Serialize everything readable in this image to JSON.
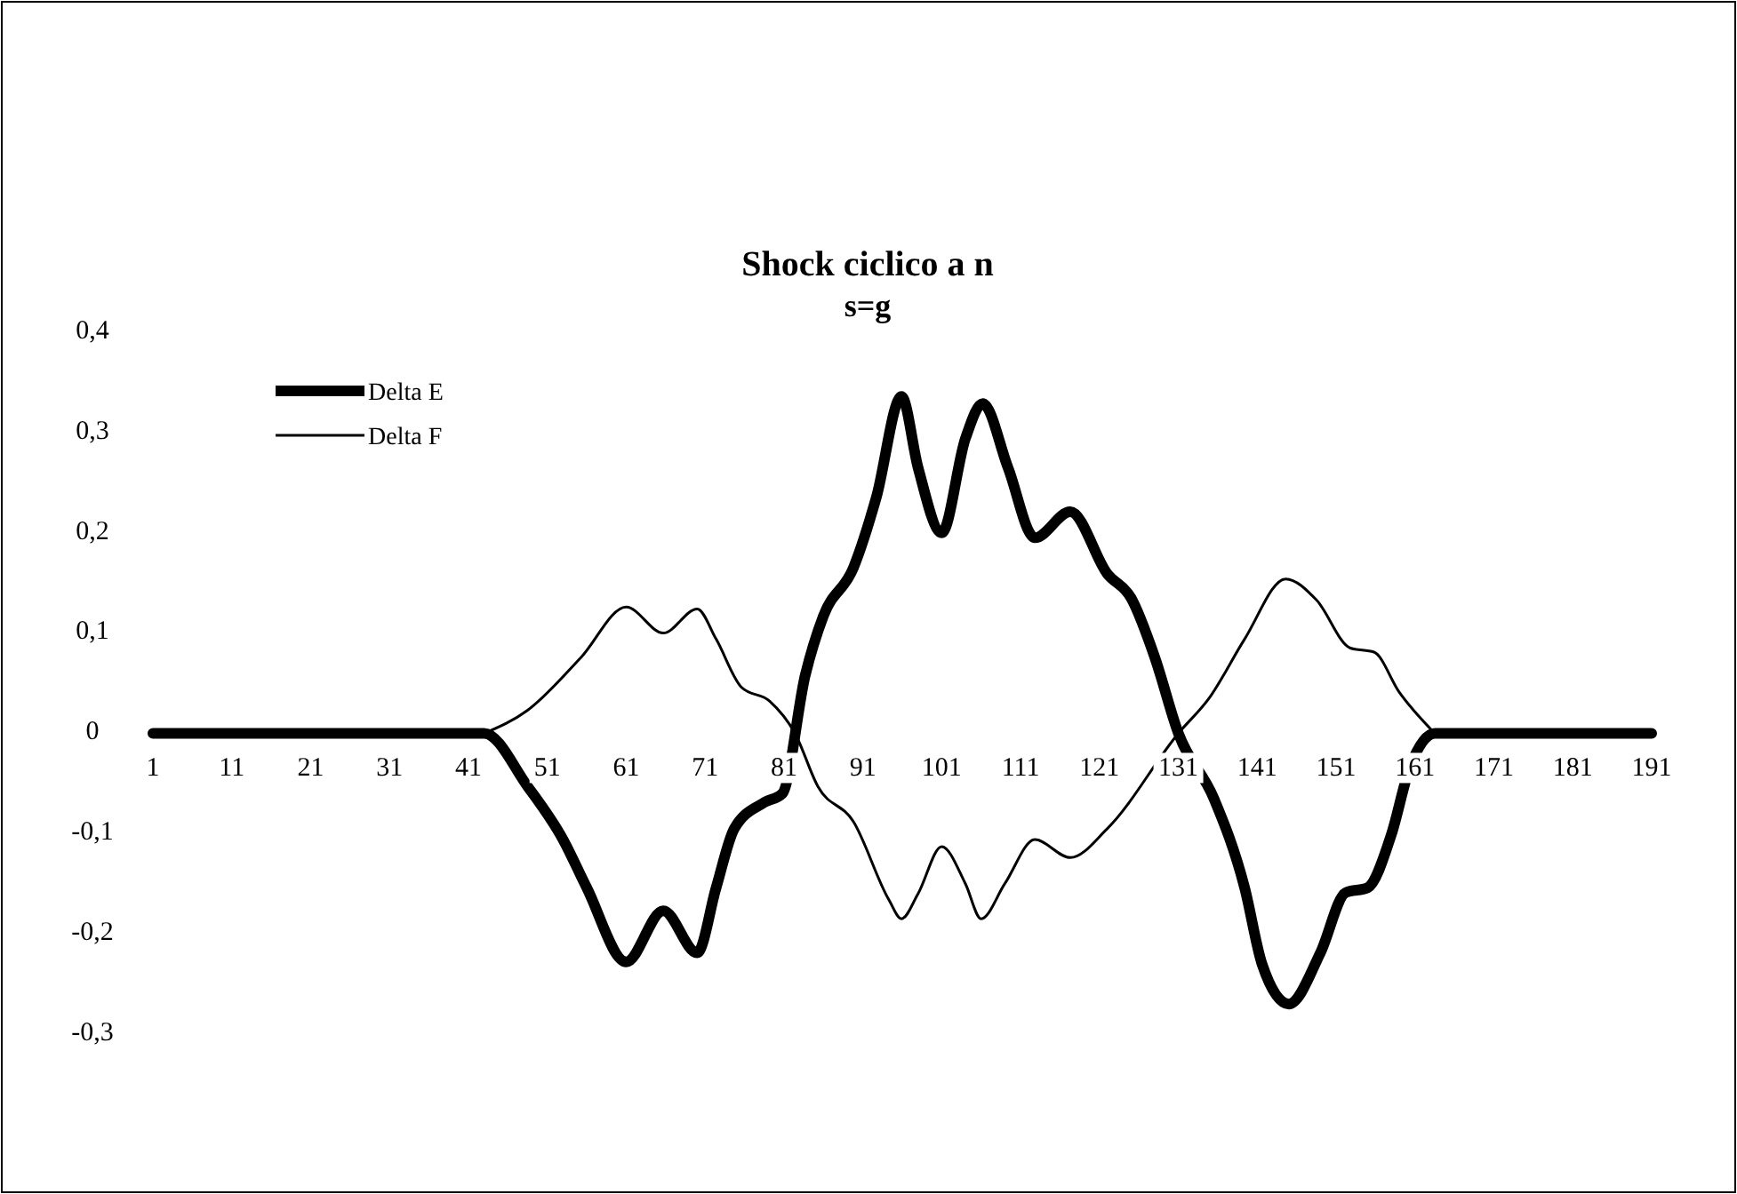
{
  "chart_data": {
    "type": "line",
    "title": "Shock ciclico a n",
    "subtitle": "s=g",
    "xlim": [
      1,
      191
    ],
    "xticks": [
      1,
      11,
      21,
      31,
      41,
      51,
      61,
      71,
      81,
      91,
      101,
      111,
      121,
      131,
      141,
      151,
      161,
      171,
      181,
      191
    ],
    "ylim": [
      -0.3,
      0.4
    ],
    "yticks": [
      {
        "value": -0.3,
        "label": "-0,3"
      },
      {
        "value": -0.2,
        "label": "-0,2"
      },
      {
        "value": -0.1,
        "label": "-0,1"
      },
      0,
      {
        "value": 0.1,
        "label": "0,1"
      },
      {
        "value": 0.2,
        "label": "0,2"
      },
      {
        "value": 0.3,
        "label": "0,3"
      },
      {
        "value": 0.4,
        "label": "0,4"
      }
    ],
    "grid": false,
    "legend": "top left",
    "marker": "none",
    "line_style": "solid",
    "series": [
      {
        "name": "Delta E",
        "color": "#000000",
        "x": [
          1,
          11,
          21,
          31,
          41,
          43,
          48.5,
          53,
          56,
          61,
          65.7,
          70,
          72.4,
          74.7,
          78.5,
          80.8,
          83.7,
          86,
          89.8,
          92.7,
          95.9,
          98,
          101,
          104,
          106.2,
          109.4,
          112.8,
          117.3,
          122,
          125,
          128,
          131,
          135.5,
          139.4,
          141.6,
          145,
          149,
          152.2,
          155,
          158,
          160.3,
          163.5,
          171,
          181,
          191
        ],
        "values": [
          0,
          0,
          0,
          0,
          0,
          0,
          -0.053,
          -0.106,
          -0.154,
          -0.228,
          -0.177,
          -0.219,
          -0.154,
          -0.095,
          -0.069,
          -0.06,
          0.058,
          0.117,
          0.165,
          0.235,
          0.336,
          0.265,
          0.2,
          0.294,
          0.329,
          0.265,
          0.195,
          0.221,
          0.159,
          0.135,
          0.076,
          0,
          -0.065,
          -0.154,
          -0.23,
          -0.27,
          -0.219,
          -0.159,
          -0.154,
          -0.101,
          -0.035,
          0,
          0,
          0,
          0
        ]
      },
      {
        "name": "Delta F",
        "color": "#000000",
        "x": [
          43,
          48.5,
          55.3,
          61,
          65.7,
          70,
          72.4,
          75.6,
          79.2,
          82.4,
          85.3,
          89.8,
          94.3,
          95.9,
          98,
          101,
          104,
          106,
          109,
          112.8,
          117.3,
          122,
          131,
          134.9,
          139.4,
          144.6,
          148.5,
          152.8,
          155.8,
          159,
          163.5
        ],
        "values": [
          0,
          0.023,
          0.076,
          0.126,
          0.1,
          0.124,
          0.094,
          0.046,
          0.032,
          0,
          -0.053,
          -0.088,
          -0.166,
          -0.185,
          -0.16,
          -0.113,
          -0.15,
          -0.185,
          -0.15,
          -0.106,
          -0.124,
          -0.095,
          0,
          0.035,
          0.094,
          0.154,
          0.133,
          0.085,
          0.081,
          0.041,
          0
        ]
      }
    ]
  }
}
